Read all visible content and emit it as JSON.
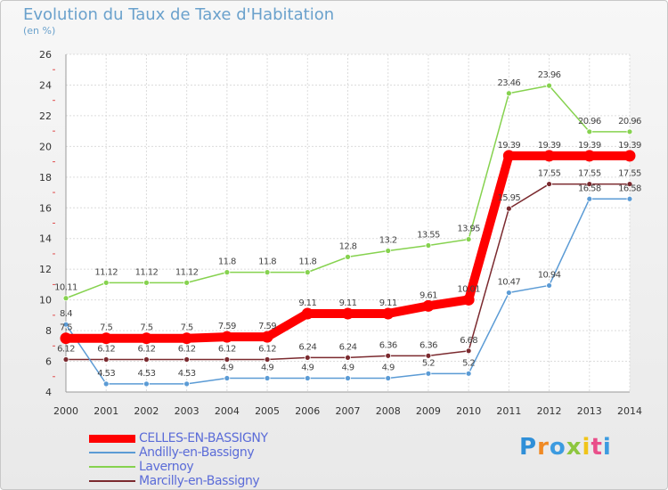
{
  "header": {
    "title": "Evolution du Taux de Taxe d'Habitation",
    "unit": "(en %)"
  },
  "chart_data": {
    "type": "line",
    "title": "Evolution du Taux de Taxe d'Habitation",
    "ylabel": "(en %)",
    "xlabel": "",
    "x": [
      2000,
      2001,
      2002,
      2003,
      2004,
      2005,
      2006,
      2007,
      2008,
      2009,
      2010,
      2011,
      2012,
      2013,
      2014
    ],
    "ylim": [
      4,
      26
    ],
    "yticks": [
      4,
      6,
      8,
      10,
      12,
      14,
      16,
      18,
      20,
      22,
      24,
      26
    ],
    "grid": true,
    "legend": "bottom-left",
    "series": [
      {
        "name": "CELLES-EN-BASSIGNY",
        "color": "#ff0000",
        "values": [
          7.5,
          7.5,
          7.5,
          7.5,
          7.59,
          7.59,
          9.11,
          9.11,
          9.11,
          9.61,
          10.01,
          19.39,
          19.39,
          19.39,
          19.39
        ],
        "labels": [
          "7.5",
          "7.5",
          "7.5",
          "7.5",
          "7.59",
          "7.59",
          "9.11",
          "9.11",
          "9.11",
          "9.61",
          "10.01",
          "19.39",
          "19.39",
          "19.39",
          "19.39"
        ]
      },
      {
        "name": "Andilly-en-Bassigny",
        "color": "#5b9bd5",
        "values": [
          8.4,
          4.53,
          4.53,
          4.53,
          4.9,
          4.9,
          4.9,
          4.9,
          4.9,
          5.2,
          5.2,
          10.47,
          10.94,
          16.58,
          16.58
        ],
        "labels": [
          "8.4",
          "4.53",
          "4.53",
          "4.53",
          "4.9",
          "4.9",
          "4.9",
          "4.9",
          "4.9",
          "5.2",
          "5.2",
          "10.47",
          "10.94",
          "16.58",
          "16.58"
        ]
      },
      {
        "name": "Lavernoy",
        "color": "#86d24f",
        "values": [
          10.11,
          11.12,
          11.12,
          11.12,
          11.8,
          11.8,
          11.8,
          12.8,
          13.2,
          13.55,
          13.95,
          23.46,
          23.96,
          20.96,
          20.96
        ],
        "labels": [
          "10.11",
          "11.12",
          "11.12",
          "11.12",
          "11.8",
          "11.8",
          "11.8",
          "12.8",
          "13.2",
          "13.55",
          "13.95",
          "23.46",
          "23.96",
          "20.96",
          "20.96"
        ]
      },
      {
        "name": "Marcilly-en-Bassigny",
        "color": "#7b2a2f",
        "values": [
          6.12,
          6.12,
          6.12,
          6.12,
          6.12,
          6.12,
          6.24,
          6.24,
          6.36,
          6.36,
          6.68,
          15.95,
          17.55,
          17.55,
          17.55
        ],
        "labels": [
          "6.12",
          "6.12",
          "6.12",
          "6.12",
          "6.12",
          "6.12",
          "6.24",
          "6.24",
          "6.36",
          "6.36",
          "6.68",
          "15.95",
          "17.55",
          "17.55",
          "17.55"
        ]
      }
    ]
  },
  "legend": {
    "items": [
      {
        "label": "CELLES-EN-BASSIGNY",
        "color": "#ff0000"
      },
      {
        "label": "Andilly-en-Bassigny",
        "color": "#5b9bd5"
      },
      {
        "label": "Lavernoy",
        "color": "#86d24f"
      },
      {
        "label": "Marcilly-en-Bassigny",
        "color": "#7b2a2f"
      }
    ]
  },
  "logo": {
    "text": "Proxiti",
    "letters": [
      "P",
      "r",
      "o",
      "x",
      "i",
      "t",
      "i"
    ],
    "colors": [
      "#2f8fd8",
      "#f08a24",
      "#3c9be0",
      "#8dc63f",
      "#f0c419",
      "#e94f8a",
      "#3c9be0"
    ]
  }
}
